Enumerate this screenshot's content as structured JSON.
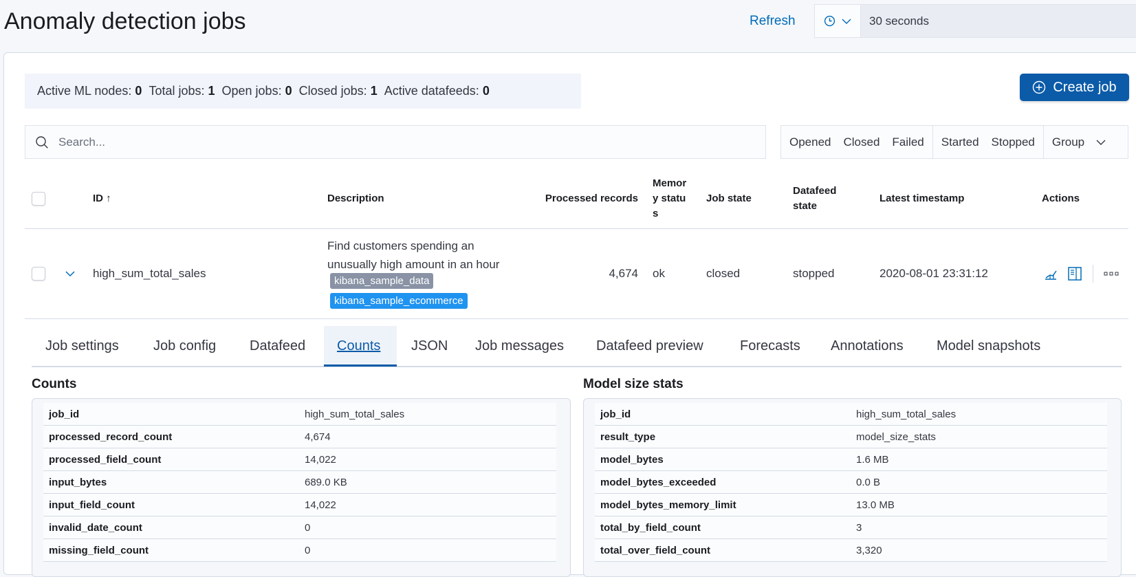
{
  "header": {
    "title": "Anomaly detection jobs",
    "refresh_label": "Refresh",
    "refresh_interval": "30 seconds"
  },
  "stats": [
    {
      "label": "Active ML nodes:",
      "value": "0"
    },
    {
      "label": "Total jobs:",
      "value": "1"
    },
    {
      "label": "Open jobs:",
      "value": "0"
    },
    {
      "label": "Closed jobs:",
      "value": "1"
    },
    {
      "label": "Active datafeeds:",
      "value": "0"
    }
  ],
  "create_job_label": "Create job",
  "search": {
    "placeholder": "Search..."
  },
  "filters": {
    "job_state": [
      "Opened",
      "Closed",
      "Failed"
    ],
    "datafeed_state": [
      "Started",
      "Stopped"
    ],
    "group": "Group"
  },
  "table": {
    "columns": {
      "id": "ID",
      "description": "Description",
      "processed": "Processed records",
      "memory": "Memory status",
      "job_state": "Job state",
      "datafeed": "Datafeed state",
      "latest": "Latest timestamp",
      "actions": "Actions"
    },
    "sort_icon": "arrow-up",
    "row": {
      "id": "high_sum_total_sales",
      "description": "Find customers spending an unusually high amount in an hour",
      "groups": [
        {
          "label": "kibana_sample_data",
          "color": "#8993a5"
        },
        {
          "label": "kibana_sample_ecommerce",
          "color": "#1f93f0"
        }
      ],
      "processed": "4,674",
      "memory": "ok",
      "job_state": "closed",
      "datafeed": "stopped",
      "latest": "2020-08-01 23:31:12"
    }
  },
  "tabs": [
    "Job settings",
    "Job config",
    "Datafeed",
    "Counts",
    "JSON",
    "Job messages",
    "Datafeed preview",
    "Forecasts",
    "Annotations",
    "Model snapshots"
  ],
  "active_tab": "Counts",
  "counts": {
    "title": "Counts",
    "rows": [
      [
        "job_id",
        "high_sum_total_sales"
      ],
      [
        "processed_record_count",
        "4,674"
      ],
      [
        "processed_field_count",
        "14,022"
      ],
      [
        "input_bytes",
        "689.0 KB"
      ],
      [
        "input_field_count",
        "14,022"
      ],
      [
        "invalid_date_count",
        "0"
      ],
      [
        "missing_field_count",
        "0"
      ]
    ]
  },
  "model_size": {
    "title": "Model size stats",
    "rows": [
      [
        "job_id",
        "high_sum_total_sales"
      ],
      [
        "result_type",
        "model_size_stats"
      ],
      [
        "model_bytes",
        "1.6 MB"
      ],
      [
        "model_bytes_exceeded",
        "0.0 B"
      ],
      [
        "model_bytes_memory_limit",
        "13.0 MB"
      ],
      [
        "total_by_field_count",
        "3"
      ],
      [
        "total_over_field_count",
        "3,320"
      ]
    ]
  },
  "colors": {
    "primary": "#0b5ba8",
    "link": "#006bb8"
  }
}
